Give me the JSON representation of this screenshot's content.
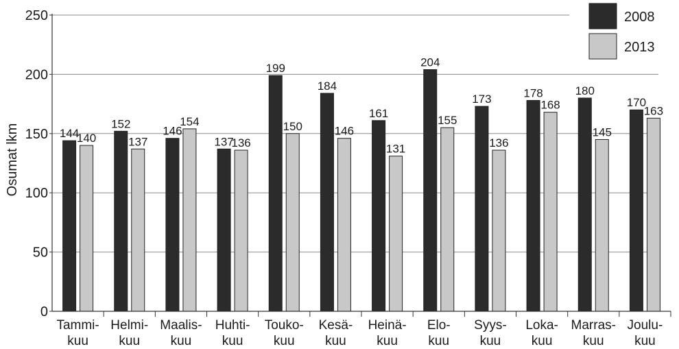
{
  "chart_data": {
    "type": "bar",
    "title": "",
    "xlabel": "",
    "ylabel": "Osumat lkm",
    "ylim": [
      0,
      250
    ],
    "yticks": [
      0,
      50,
      100,
      150,
      200,
      250
    ],
    "grid": true,
    "legend_position": "top-right",
    "categories": [
      [
        "Tammi-",
        "kuu"
      ],
      [
        "Helmi-",
        "kuu"
      ],
      [
        "Maalis-",
        "kuu"
      ],
      [
        "Huhti-",
        "kuu"
      ],
      [
        "Touko-",
        "kuu"
      ],
      [
        "Kesä-",
        "kuu"
      ],
      [
        "Heinä-",
        "kuu"
      ],
      [
        "Elo-",
        "kuu"
      ],
      [
        "Syys-",
        "kuu"
      ],
      [
        "Loka-",
        "kuu"
      ],
      [
        "Marras-",
        "kuu"
      ],
      [
        "Joulu-",
        "kuu"
      ]
    ],
    "series": [
      {
        "name": "2008",
        "color": "#2b2b2b",
        "values": [
          144,
          152,
          146,
          137,
          199,
          184,
          161,
          204,
          173,
          178,
          180,
          170
        ]
      },
      {
        "name": "2013",
        "color": "#c8c8c8",
        "values": [
          140,
          137,
          154,
          136,
          150,
          146,
          131,
          155,
          136,
          168,
          145,
          163
        ]
      }
    ]
  }
}
